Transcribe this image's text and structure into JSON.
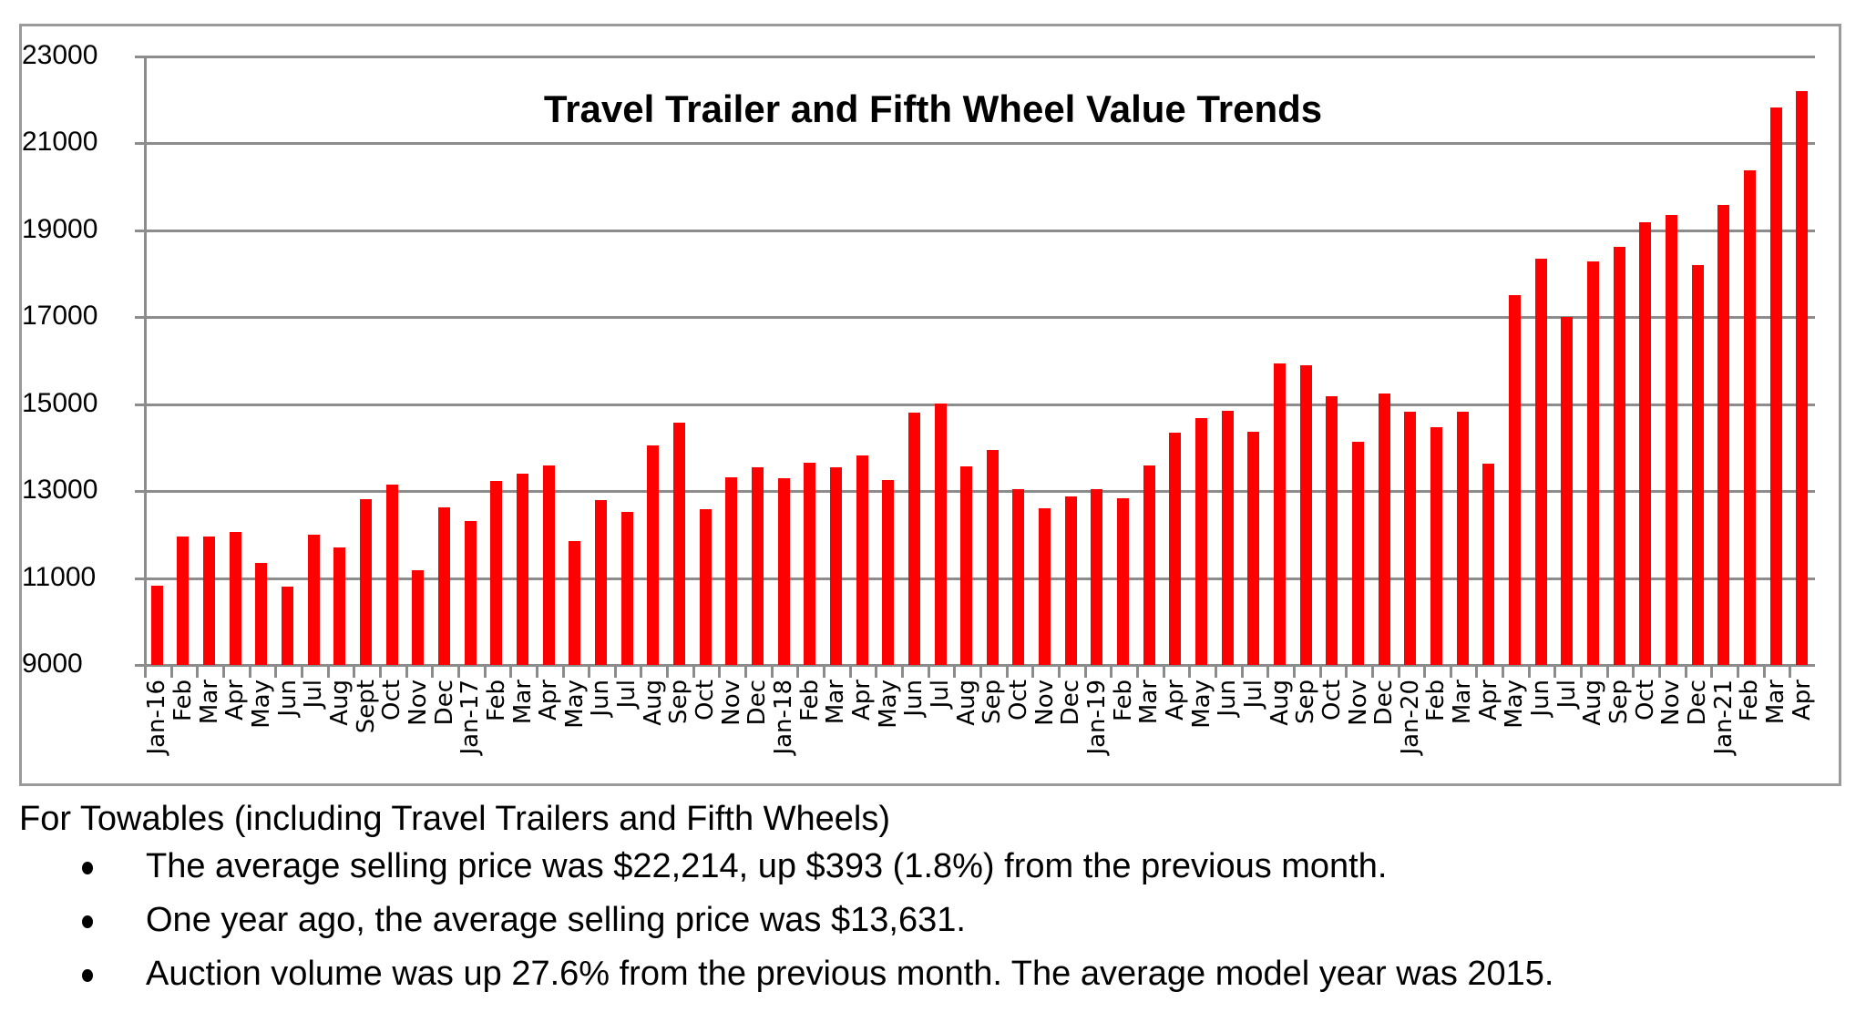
{
  "chart_data": {
    "type": "bar",
    "title": "Travel Trailer and Fifth Wheel Value Trends",
    "xlabel": "",
    "ylabel": "",
    "ylim": [
      9000,
      23000
    ],
    "yticks": [
      9000,
      11000,
      13000,
      15000,
      17000,
      19000,
      21000,
      23000
    ],
    "grid": true,
    "legend": null,
    "bar_color": "#ff0000",
    "categories": [
      "Jan-16",
      "Feb",
      "Mar",
      "Apr",
      "May",
      "Jun",
      "Jul",
      "Aug",
      "Sept",
      "Oct",
      "Nov",
      "Dec",
      "Jan-17",
      "Feb",
      "Mar",
      "Apr",
      "May",
      "Jun",
      "Jul",
      "Aug",
      "Sep",
      "Oct",
      "Nov",
      "Dec",
      "Jan-18",
      "Feb",
      "Mar",
      "Apr",
      "May",
      "Jun",
      "Jul",
      "Aug",
      "Sep",
      "Oct",
      "Nov",
      "Dec",
      "Jan-19",
      "Feb",
      "Mar",
      "Apr",
      "May",
      "Jun",
      "Jul",
      "Aug",
      "Sep",
      "Oct",
      "Nov",
      "Dec",
      "Jan-20",
      "Feb",
      "Mar",
      "Apr",
      "May",
      "Jun",
      "Jul",
      "Aug",
      "Sep",
      "Oct",
      "Nov",
      "Dec",
      "Jan-21",
      "Feb",
      "Mar",
      "Apr"
    ],
    "values": [
      10830,
      11950,
      11960,
      12070,
      11350,
      10800,
      11990,
      11700,
      12820,
      13140,
      11170,
      12620,
      12320,
      13240,
      13410,
      13600,
      11840,
      12800,
      12520,
      14050,
      14580,
      12590,
      13320,
      13540,
      13300,
      13660,
      13540,
      13810,
      13260,
      14810,
      15010,
      13560,
      13950,
      13050,
      12600,
      12870,
      13040,
      12830,
      13580,
      14340,
      14670,
      14850,
      14370,
      15930,
      15900,
      15180,
      14130,
      15250,
      14820,
      14460,
      14830,
      13631,
      17510,
      18350,
      17010,
      18290,
      18630,
      19190,
      19350,
      18200,
      19580,
      20370,
      21821,
      22214
    ]
  },
  "caption": "For Towables (including Travel Trailers and Fifth Wheels)",
  "bullets": [
    "The average selling price was $22,214, up $393 (1.8%) from the previous month.",
    "One year ago, the average selling price was $13,631.",
    "Auction volume was up 27.6% from the previous month.  The average model year was 2015."
  ]
}
